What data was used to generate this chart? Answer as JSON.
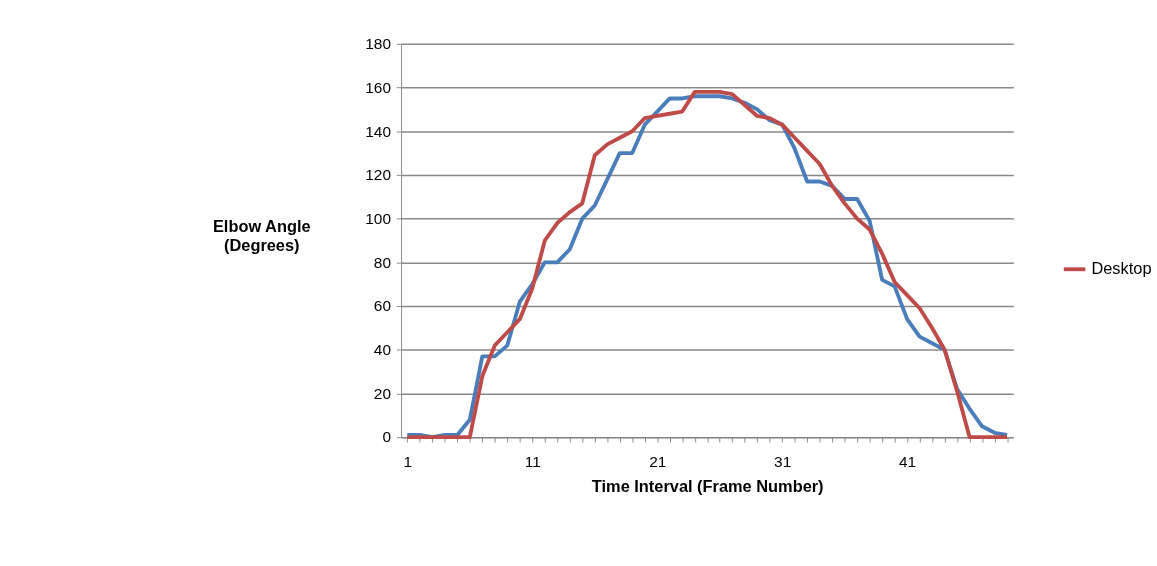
{
  "chart_data": {
    "type": "line",
    "xlabel": "Time Interval (Frame Number)",
    "ylabel": "Elbow Angle (Degrees)",
    "categories": [
      "1",
      null,
      null,
      null,
      null,
      null,
      null,
      null,
      null,
      null,
      "11",
      null,
      null,
      null,
      null,
      null,
      null,
      null,
      null,
      null,
      "21",
      null,
      null,
      null,
      null,
      null,
      null,
      null,
      null,
      null,
      "31",
      null,
      null,
      null,
      null,
      null,
      null,
      null,
      null,
      null,
      "41",
      null,
      null,
      null,
      null,
      null,
      null,
      null,
      null
    ],
    "series": [
      {
        "color": "#4a7ebb",
        "values": [
          1,
          1,
          0,
          1,
          1,
          8,
          37,
          37,
          42,
          62,
          70,
          80,
          80,
          86,
          100,
          106,
          118,
          130,
          130,
          143,
          149,
          155,
          155,
          156,
          156,
          156,
          155,
          153,
          150,
          145,
          143,
          132,
          117,
          117,
          115,
          109,
          109,
          99,
          72,
          69,
          54,
          46,
          43,
          40,
          22,
          13,
          5,
          2,
          1
        ]
      },
      {
        "name": "Desktop",
        "color": "#be4b48",
        "values": [
          0,
          0,
          0,
          0,
          0,
          0,
          28,
          42,
          48,
          54,
          68,
          90,
          98,
          103,
          107,
          129,
          134,
          137,
          140,
          146,
          147,
          148,
          149,
          158,
          158,
          158,
          157,
          152,
          147,
          146,
          143,
          137,
          131,
          125,
          115,
          107,
          100,
          95,
          84,
          71,
          65,
          59,
          50,
          40,
          21,
          0,
          0,
          0,
          0
        ]
      }
    ],
    "ylim": [
      0,
      180
    ],
    "yticks": [
      0,
      20,
      40,
      60,
      80,
      100,
      120,
      140,
      160,
      180
    ],
    "grid": "y",
    "legend": "right",
    "marker": "none",
    "line_style": "solid"
  }
}
